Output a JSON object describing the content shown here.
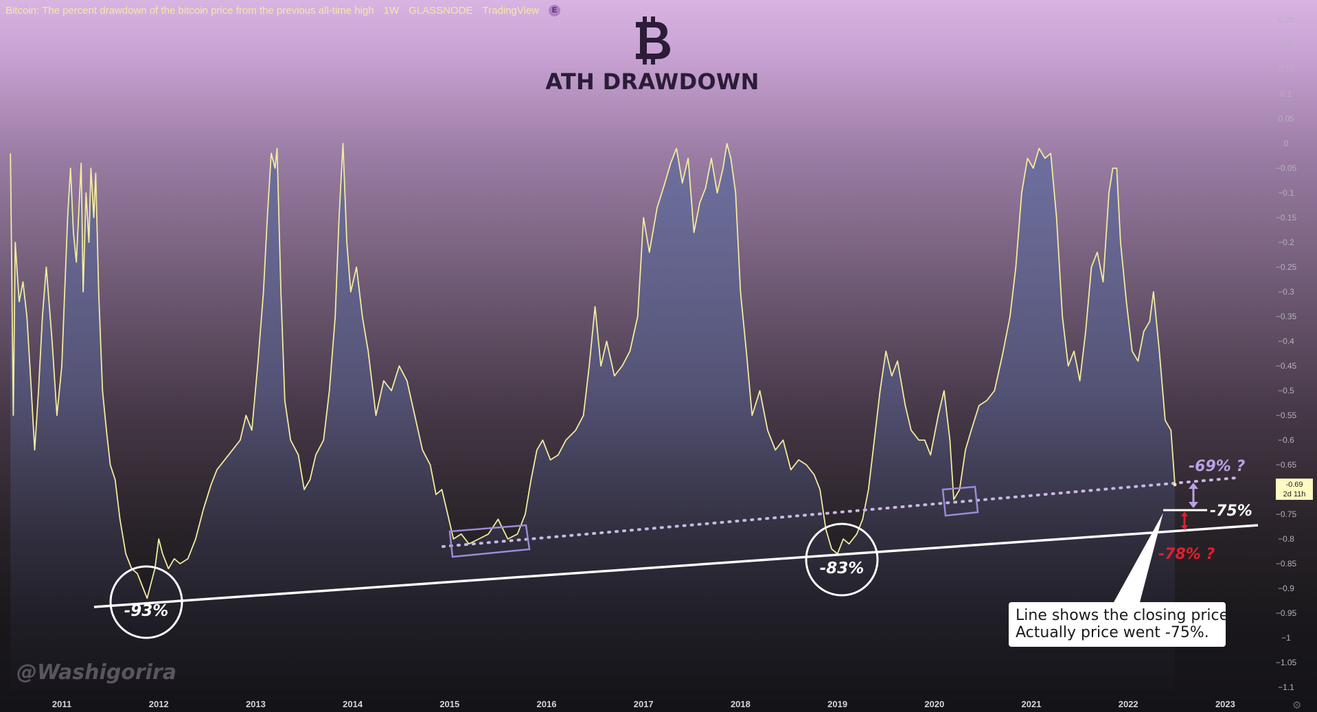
{
  "header": {
    "title": "Bitcoin: The percent drawdown of the bitcoin price from the previous all-time high",
    "interval": "1W",
    "source": "GLASSNODE",
    "platform": "TradingView",
    "badge": "E"
  },
  "logo_icon": "bitcoin-b-icon",
  "chart_title": "ATH DRAWDOWN",
  "watermark": "@Washigorira",
  "price_tag": {
    "value": "-0.69",
    "countdown": "2d 11h"
  },
  "callout": {
    "line1": "Line shows the closing price.",
    "line2": "Actually price went -75%."
  },
  "colors": {
    "series_line": "#f3ec9f",
    "area_top": "#6c6f9f",
    "trendline": "#ffffff",
    "dotted_trendline": "#c9b8e6",
    "box_outline": "#9d8bd8",
    "red_annotation": "#e21f2e",
    "purple_annotation": "#b9a2e4",
    "bg_top": "#d8b4e2",
    "bg_bottom": "#141317"
  },
  "chart_data": {
    "type": "area",
    "title": "ATH DRAWDOWN",
    "xlabel": "",
    "ylabel": "",
    "x_ticks": [
      "2011",
      "2012",
      "2013",
      "2014",
      "2015",
      "2016",
      "2017",
      "2018",
      "2019",
      "2020",
      "2021",
      "2022",
      "2023"
    ],
    "y_ticks": [
      "0.25",
      "0.2",
      "0.15",
      "0.1",
      "0.05",
      "0",
      "−0.05",
      "−0.1",
      "−0.15",
      "−0.2",
      "−0.25",
      "−0.3",
      "−0.35",
      "−0.4",
      "−0.45",
      "−0.5",
      "−0.55",
      "−0.6",
      "−0.65",
      "−0.7",
      "−0.75",
      "−0.8",
      "−0.85",
      "−0.9",
      "−0.95",
      "−1",
      "−1.05",
      "−1.1"
    ],
    "ylim": [
      -1.12,
      0.27
    ],
    "xlim": [
      2010.47,
      2023.42
    ],
    "grid": false,
    "series": [
      {
        "values": [
          [
            2010.47,
            -0.02
          ],
          [
            2010.5,
            -0.55
          ],
          [
            2010.52,
            -0.2
          ],
          [
            2010.56,
            -0.32
          ],
          [
            2010.6,
            -0.28
          ],
          [
            2010.64,
            -0.35
          ],
          [
            2010.68,
            -0.48
          ],
          [
            2010.72,
            -0.62
          ],
          [
            2010.76,
            -0.5
          ],
          [
            2010.8,
            -0.35
          ],
          [
            2010.84,
            -0.25
          ],
          [
            2010.9,
            -0.4
          ],
          [
            2010.95,
            -0.55
          ],
          [
            2011.0,
            -0.45
          ],
          [
            2011.03,
            -0.3
          ],
          [
            2011.06,
            -0.15
          ],
          [
            2011.09,
            -0.05
          ],
          [
            2011.12,
            -0.18
          ],
          [
            2011.15,
            -0.24
          ],
          [
            2011.18,
            -0.12
          ],
          [
            2011.2,
            -0.04
          ],
          [
            2011.22,
            -0.3
          ],
          [
            2011.25,
            -0.1
          ],
          [
            2011.28,
            -0.2
          ],
          [
            2011.3,
            -0.05
          ],
          [
            2011.33,
            -0.15
          ],
          [
            2011.35,
            -0.06
          ],
          [
            2011.38,
            -0.3
          ],
          [
            2011.42,
            -0.5
          ],
          [
            2011.46,
            -0.58
          ],
          [
            2011.5,
            -0.65
          ],
          [
            2011.55,
            -0.68
          ],
          [
            2011.6,
            -0.76
          ],
          [
            2011.66,
            -0.83
          ],
          [
            2011.72,
            -0.86
          ],
          [
            2011.78,
            -0.87
          ],
          [
            2011.84,
            -0.9
          ],
          [
            2011.88,
            -0.92
          ],
          [
            2011.92,
            -0.89
          ],
          [
            2011.96,
            -0.86
          ],
          [
            2012.0,
            -0.8
          ],
          [
            2012.04,
            -0.83
          ],
          [
            2012.1,
            -0.86
          ],
          [
            2012.16,
            -0.84
          ],
          [
            2012.22,
            -0.85
          ],
          [
            2012.3,
            -0.84
          ],
          [
            2012.38,
            -0.8
          ],
          [
            2012.46,
            -0.74
          ],
          [
            2012.54,
            -0.69
          ],
          [
            2012.6,
            -0.66
          ],
          [
            2012.68,
            -0.64
          ],
          [
            2012.76,
            -0.62
          ],
          [
            2012.84,
            -0.6
          ],
          [
            2012.9,
            -0.55
          ],
          [
            2012.96,
            -0.58
          ],
          [
            2013.02,
            -0.45
          ],
          [
            2013.08,
            -0.3
          ],
          [
            2013.12,
            -0.15
          ],
          [
            2013.16,
            -0.02
          ],
          [
            2013.2,
            -0.05
          ],
          [
            2013.22,
            -0.01
          ],
          [
            2013.26,
            -0.3
          ],
          [
            2013.3,
            -0.52
          ],
          [
            2013.36,
            -0.6
          ],
          [
            2013.44,
            -0.63
          ],
          [
            2013.5,
            -0.7
          ],
          [
            2013.56,
            -0.68
          ],
          [
            2013.62,
            -0.63
          ],
          [
            2013.7,
            -0.6
          ],
          [
            2013.76,
            -0.5
          ],
          [
            2013.82,
            -0.35
          ],
          [
            2013.86,
            -0.15
          ],
          [
            2013.9,
            0.0
          ],
          [
            2013.94,
            -0.2
          ],
          [
            2013.98,
            -0.3
          ],
          [
            2014.04,
            -0.25
          ],
          [
            2014.1,
            -0.35
          ],
          [
            2014.16,
            -0.42
          ],
          [
            2014.24,
            -0.55
          ],
          [
            2014.32,
            -0.48
          ],
          [
            2014.4,
            -0.5
          ],
          [
            2014.48,
            -0.45
          ],
          [
            2014.56,
            -0.48
          ],
          [
            2014.64,
            -0.55
          ],
          [
            2014.72,
            -0.62
          ],
          [
            2014.8,
            -0.65
          ],
          [
            2014.86,
            -0.71
          ],
          [
            2014.92,
            -0.7
          ],
          [
            2014.98,
            -0.75
          ],
          [
            2015.04,
            -0.8
          ],
          [
            2015.12,
            -0.79
          ],
          [
            2015.2,
            -0.81
          ],
          [
            2015.3,
            -0.8
          ],
          [
            2015.4,
            -0.79
          ],
          [
            2015.5,
            -0.76
          ],
          [
            2015.6,
            -0.8
          ],
          [
            2015.7,
            -0.79
          ],
          [
            2015.78,
            -0.75
          ],
          [
            2015.84,
            -0.68
          ],
          [
            2015.9,
            -0.62
          ],
          [
            2015.96,
            -0.6
          ],
          [
            2016.04,
            -0.64
          ],
          [
            2016.12,
            -0.63
          ],
          [
            2016.2,
            -0.6
          ],
          [
            2016.3,
            -0.58
          ],
          [
            2016.38,
            -0.55
          ],
          [
            2016.44,
            -0.45
          ],
          [
            2016.5,
            -0.33
          ],
          [
            2016.56,
            -0.45
          ],
          [
            2016.62,
            -0.4
          ],
          [
            2016.7,
            -0.47
          ],
          [
            2016.78,
            -0.45
          ],
          [
            2016.86,
            -0.42
          ],
          [
            2016.94,
            -0.35
          ],
          [
            2017.0,
            -0.15
          ],
          [
            2017.06,
            -0.22
          ],
          [
            2017.14,
            -0.13
          ],
          [
            2017.22,
            -0.08
          ],
          [
            2017.28,
            -0.04
          ],
          [
            2017.34,
            -0.01
          ],
          [
            2017.4,
            -0.08
          ],
          [
            2017.46,
            -0.03
          ],
          [
            2017.52,
            -0.18
          ],
          [
            2017.58,
            -0.12
          ],
          [
            2017.64,
            -0.09
          ],
          [
            2017.7,
            -0.03
          ],
          [
            2017.76,
            -0.1
          ],
          [
            2017.82,
            -0.05
          ],
          [
            2017.86,
            0.0
          ],
          [
            2017.9,
            -0.03
          ],
          [
            2017.95,
            -0.1
          ],
          [
            2018.0,
            -0.3
          ],
          [
            2018.06,
            -0.42
          ],
          [
            2018.12,
            -0.55
          ],
          [
            2018.2,
            -0.5
          ],
          [
            2018.28,
            -0.58
          ],
          [
            2018.36,
            -0.62
          ],
          [
            2018.44,
            -0.6
          ],
          [
            2018.52,
            -0.66
          ],
          [
            2018.6,
            -0.64
          ],
          [
            2018.68,
            -0.65
          ],
          [
            2018.76,
            -0.67
          ],
          [
            2018.82,
            -0.7
          ],
          [
            2018.88,
            -0.78
          ],
          [
            2018.94,
            -0.82
          ],
          [
            2019.0,
            -0.83
          ],
          [
            2019.06,
            -0.8
          ],
          [
            2019.12,
            -0.81
          ],
          [
            2019.2,
            -0.79
          ],
          [
            2019.26,
            -0.76
          ],
          [
            2019.32,
            -0.7
          ],
          [
            2019.38,
            -0.6
          ],
          [
            2019.44,
            -0.5
          ],
          [
            2019.5,
            -0.42
          ],
          [
            2019.56,
            -0.47
          ],
          [
            2019.62,
            -0.44
          ],
          [
            2019.7,
            -0.53
          ],
          [
            2019.76,
            -0.58
          ],
          [
            2019.84,
            -0.6
          ],
          [
            2019.9,
            -0.6
          ],
          [
            2019.96,
            -0.63
          ],
          [
            2020.04,
            -0.55
          ],
          [
            2020.1,
            -0.5
          ],
          [
            2020.16,
            -0.6
          ],
          [
            2020.2,
            -0.72
          ],
          [
            2020.26,
            -0.7
          ],
          [
            2020.32,
            -0.62
          ],
          [
            2020.38,
            -0.58
          ],
          [
            2020.46,
            -0.53
          ],
          [
            2020.54,
            -0.52
          ],
          [
            2020.62,
            -0.5
          ],
          [
            2020.7,
            -0.43
          ],
          [
            2020.78,
            -0.35
          ],
          [
            2020.84,
            -0.25
          ],
          [
            2020.9,
            -0.1
          ],
          [
            2020.96,
            -0.03
          ],
          [
            2021.02,
            -0.05
          ],
          [
            2021.08,
            -0.01
          ],
          [
            2021.14,
            -0.03
          ],
          [
            2021.2,
            -0.02
          ],
          [
            2021.26,
            -0.15
          ],
          [
            2021.32,
            -0.35
          ],
          [
            2021.38,
            -0.45
          ],
          [
            2021.44,
            -0.42
          ],
          [
            2021.5,
            -0.48
          ],
          [
            2021.56,
            -0.38
          ],
          [
            2021.62,
            -0.25
          ],
          [
            2021.68,
            -0.22
          ],
          [
            2021.74,
            -0.28
          ],
          [
            2021.8,
            -0.1
          ],
          [
            2021.84,
            -0.05
          ],
          [
            2021.88,
            -0.05
          ],
          [
            2021.92,
            -0.2
          ],
          [
            2021.98,
            -0.32
          ],
          [
            2022.04,
            -0.42
          ],
          [
            2022.1,
            -0.44
          ],
          [
            2022.16,
            -0.38
          ],
          [
            2022.22,
            -0.36
          ],
          [
            2022.26,
            -0.3
          ],
          [
            2022.32,
            -0.42
          ],
          [
            2022.38,
            -0.56
          ],
          [
            2022.44,
            -0.58
          ],
          [
            2022.48,
            -0.69
          ]
        ]
      }
    ]
  },
  "annotations": {
    "circles": [
      {
        "label": "-93%"
      },
      {
        "label": "-83%"
      }
    ],
    "levels": [
      {
        "label": "-69% ?"
      },
      {
        "label": "-75%"
      },
      {
        "label": "-78% ?"
      }
    ]
  }
}
